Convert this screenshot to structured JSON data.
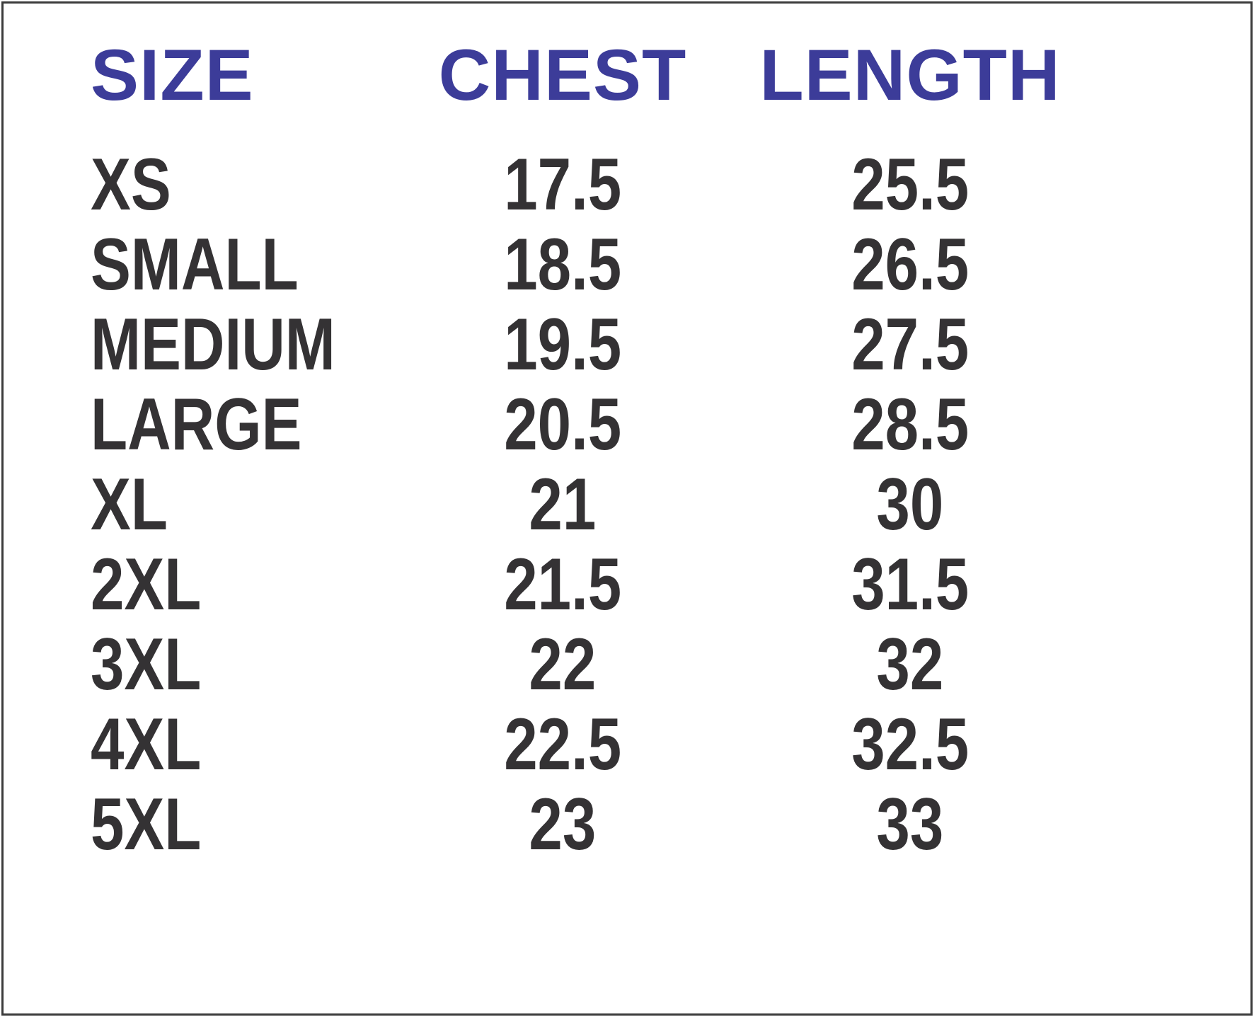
{
  "chart_data": {
    "type": "table",
    "columns": [
      "SIZE",
      "CHEST",
      "LENGTH"
    ],
    "rows": [
      {
        "size": "XS",
        "chest": "17.5",
        "length": "25.5"
      },
      {
        "size": "SMALL",
        "chest": "18.5",
        "length": "26.5"
      },
      {
        "size": "MEDIUM",
        "chest": "19.5",
        "length": "27.5"
      },
      {
        "size": "LARGE",
        "chest": "20.5",
        "length": "28.5"
      },
      {
        "size": "XL",
        "chest": "21",
        "length": "30"
      },
      {
        "size": "2XL",
        "chest": "21.5",
        "length": "31.5"
      },
      {
        "size": "3XL",
        "chest": "22",
        "length": "32"
      },
      {
        "size": "4XL",
        "chest": "22.5",
        "length": "32.5"
      },
      {
        "size": "5XL",
        "chest": "23",
        "length": "33"
      }
    ]
  },
  "colors": {
    "header_text": "#3C3C99",
    "body_text": "#343234",
    "border": "#3B3B3B",
    "background": "#FFFFFF"
  }
}
